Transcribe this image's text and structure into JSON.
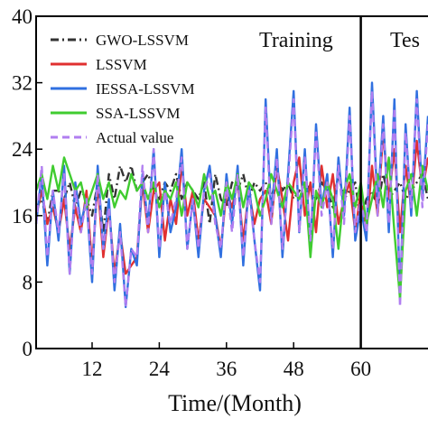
{
  "chart_data": {
    "type": "line",
    "xlabel": "Time/(Month)",
    "ylabel": "",
    "xlim": [
      2,
      72
    ],
    "ylim": [
      0,
      40
    ],
    "x_ticks": [
      12,
      24,
      36,
      48,
      60
    ],
    "y_ticks": [
      0,
      8,
      16,
      24,
      32,
      40
    ],
    "y_tick_labels": [
      "0",
      "8",
      "16",
      "24",
      "32",
      "40"
    ],
    "split_x": 60,
    "regions": [
      "Training",
      "Tes"
    ],
    "legend_position": "upper-left",
    "grid": false,
    "series": [
      {
        "name": "GWO-LSSVM",
        "color": "#333333",
        "dash": "dashdot",
        "x": [
          2,
          3,
          4,
          5,
          6,
          7,
          8,
          9,
          10,
          11,
          12,
          13,
          14,
          15,
          16,
          17,
          18,
          19,
          20,
          21,
          22,
          23,
          24,
          25,
          26,
          27,
          28,
          29,
          30,
          31,
          32,
          33,
          34,
          35,
          36,
          37,
          38,
          39,
          40,
          41,
          42,
          43,
          44,
          45,
          46,
          47,
          48,
          49,
          50,
          51,
          52,
          53,
          54,
          55,
          56,
          57,
          58,
          59,
          60,
          61,
          62,
          63,
          64,
          65,
          66,
          67,
          68,
          69,
          70,
          71,
          72
        ],
        "values": [
          17,
          18,
          15,
          19,
          19,
          18,
          20,
          17,
          19,
          18,
          16,
          20,
          14,
          21,
          18,
          22,
          20,
          22,
          19,
          20,
          21,
          19,
          18,
          20,
          19,
          21,
          18,
          20,
          19,
          18,
          20,
          15,
          21,
          18,
          17,
          20,
          19,
          21,
          18,
          20,
          19,
          20,
          18,
          21,
          19,
          20,
          18,
          19,
          20,
          19,
          18,
          20,
          19,
          17,
          21,
          18,
          19,
          20,
          15,
          18,
          19,
          17,
          21,
          18,
          19,
          20,
          18,
          19,
          20,
          21,
          18
        ]
      },
      {
        "name": "LSSVM",
        "color": "#e03030",
        "dash": "solid",
        "x": [
          2,
          3,
          4,
          5,
          6,
          7,
          8,
          9,
          10,
          11,
          12,
          13,
          14,
          15,
          16,
          17,
          18,
          19,
          20,
          21,
          22,
          23,
          24,
          25,
          26,
          27,
          28,
          29,
          30,
          31,
          32,
          33,
          34,
          35,
          36,
          37,
          38,
          39,
          40,
          41,
          42,
          43,
          44,
          45,
          46,
          47,
          48,
          49,
          50,
          51,
          52,
          53,
          54,
          55,
          56,
          57,
          58,
          59,
          60,
          61,
          62,
          63,
          64,
          65,
          66,
          67,
          68,
          69,
          70,
          71,
          72
        ],
        "values": [
          16,
          19,
          15,
          17,
          14,
          18,
          12,
          17,
          14,
          19,
          10,
          20,
          11,
          17,
          9,
          14,
          9,
          10,
          11,
          20,
          14,
          19,
          20,
          13,
          18,
          15,
          22,
          16,
          19,
          13,
          18,
          17,
          16,
          12,
          19,
          17,
          20,
          13,
          19,
          15,
          18,
          19,
          15,
          22,
          18,
          13,
          20,
          23,
          16,
          20,
          14,
          22,
          17,
          21,
          15,
          18,
          20,
          14,
          19,
          14,
          22,
          16,
          26,
          18,
          24,
          14,
          22,
          17,
          25,
          19,
          23
        ]
      },
      {
        "name": "IESSA-LSSVM",
        "color": "#3070e0",
        "dash": "solid",
        "x": [
          2,
          3,
          4,
          5,
          6,
          7,
          8,
          9,
          10,
          11,
          12,
          13,
          14,
          15,
          16,
          17,
          18,
          19,
          20,
          21,
          22,
          23,
          24,
          25,
          26,
          27,
          28,
          29,
          30,
          31,
          32,
          33,
          34,
          35,
          36,
          37,
          38,
          39,
          40,
          41,
          42,
          43,
          44,
          45,
          46,
          47,
          48,
          49,
          50,
          51,
          52,
          53,
          54,
          55,
          56,
          57,
          58,
          59,
          60,
          61,
          62,
          63,
          64,
          65,
          66,
          67,
          68,
          69,
          70,
          71,
          72
        ],
        "values": [
          15,
          21,
          10,
          19,
          13,
          22,
          9,
          20,
          15,
          18,
          8,
          22,
          12,
          18,
          7,
          15,
          5,
          12,
          10,
          21,
          15,
          24,
          11,
          20,
          14,
          17,
          24,
          12,
          18,
          11,
          19,
          22,
          16,
          11,
          21,
          15,
          22,
          10,
          20,
          13,
          7,
          30,
          16,
          24,
          11,
          21,
          31,
          14,
          24,
          12,
          27,
          17,
          21,
          11,
          23,
          16,
          29,
          13,
          17,
          13,
          32,
          17,
          28,
          14,
          30,
          6,
          27,
          16,
          31,
          18,
          28
        ]
      },
      {
        "name": "SSA-LSSVM",
        "color": "#40cc30",
        "dash": "solid",
        "x": [
          2,
          3,
          4,
          5,
          6,
          7,
          8,
          9,
          10,
          11,
          12,
          13,
          14,
          15,
          16,
          17,
          18,
          19,
          20,
          21,
          22,
          23,
          24,
          25,
          26,
          27,
          28,
          29,
          30,
          31,
          32,
          33,
          34,
          35,
          36,
          37,
          38,
          39,
          40,
          41,
          42,
          43,
          44,
          45,
          46,
          47,
          48,
          49,
          50,
          51,
          52,
          53,
          54,
          55,
          56,
          57,
          58,
          59,
          60,
          61,
          62,
          63,
          64,
          65,
          66,
          67,
          68,
          69,
          70,
          71,
          72
        ],
        "values": [
          19,
          21,
          18,
          22,
          19,
          23,
          21,
          19,
          20,
          17,
          19,
          21,
          18,
          20,
          17,
          19,
          18,
          21,
          19,
          20,
          18,
          20,
          17,
          19,
          18,
          20,
          16,
          20,
          19,
          17,
          21,
          18,
          19,
          16,
          20,
          18,
          21,
          17,
          20,
          19,
          16,
          18,
          21,
          19,
          17,
          20,
          19,
          18,
          20,
          11,
          19,
          17,
          20,
          18,
          12,
          19,
          21,
          17,
          20,
          15,
          18,
          21,
          17,
          23,
          14,
          6,
          19,
          21,
          16,
          22,
          19
        ]
      },
      {
        "name": "Actual value",
        "color": "#b07ef0",
        "dash": "dashed",
        "x": [
          2,
          3,
          4,
          5,
          6,
          7,
          8,
          9,
          10,
          11,
          12,
          13,
          14,
          15,
          16,
          17,
          18,
          19,
          20,
          21,
          22,
          23,
          24,
          25,
          26,
          27,
          28,
          29,
          30,
          31,
          32,
          33,
          34,
          35,
          36,
          37,
          38,
          39,
          40,
          41,
          42,
          43,
          44,
          45,
          46,
          47,
          48,
          49,
          50,
          51,
          52,
          53,
          54,
          55,
          56,
          57,
          58,
          59,
          60,
          61,
          62,
          63,
          64,
          65,
          66,
          67,
          68,
          69,
          70,
          71,
          72
        ],
        "values": [
          15,
          22,
          11,
          19,
          14,
          21,
          9,
          19,
          14,
          18,
          9,
          21,
          12,
          17,
          8,
          14,
          5,
          12,
          11,
          22,
          14,
          24,
          12,
          19,
          15,
          18,
          23,
          12,
          18,
          12,
          19,
          21,
          15,
          12,
          20,
          14,
          21,
          11,
          19,
          13,
          8,
          29,
          15,
          23,
          12,
          20,
          30,
          14,
          23,
          13,
          26,
          16,
          20,
          12,
          22,
          15,
          28,
          14,
          18,
          14,
          31,
          16,
          27,
          15,
          29,
          5,
          26,
          17,
          30,
          17,
          27
        ]
      }
    ]
  }
}
